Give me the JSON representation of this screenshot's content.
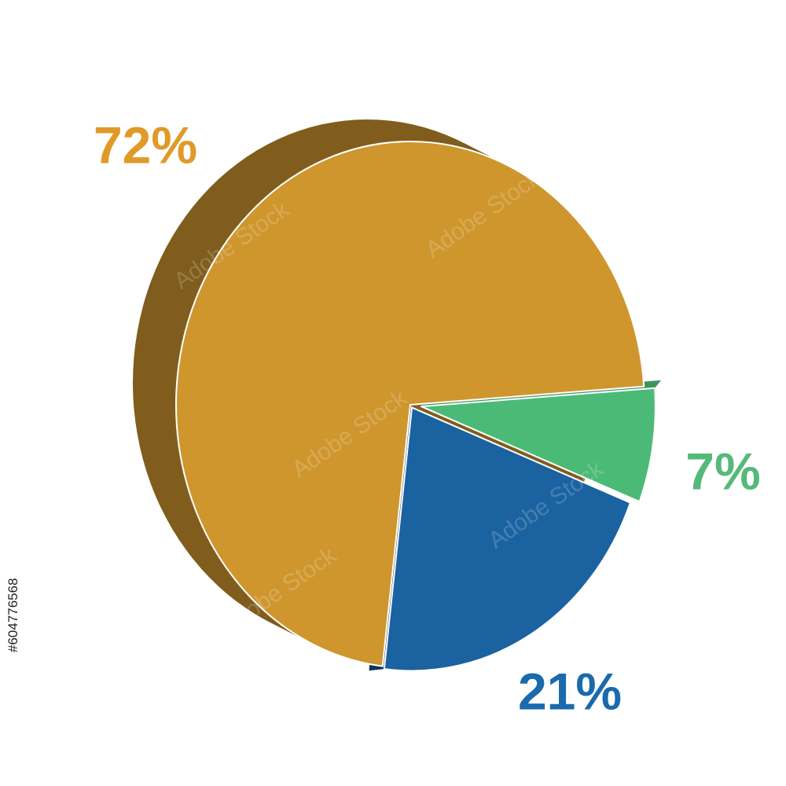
{
  "chart_data": {
    "type": "pie",
    "values": [
      72,
      21,
      7
    ],
    "value_labels": [
      "72%",
      "21%",
      "7%"
    ],
    "colors": [
      "#cf962e",
      "#1b62a0",
      "#4bba77"
    ],
    "label_colors": [
      "#e09a28",
      "#1a6aad",
      "#55b97a"
    ],
    "watermark": "Adobe Stock",
    "stock_id": "#604776568"
  }
}
